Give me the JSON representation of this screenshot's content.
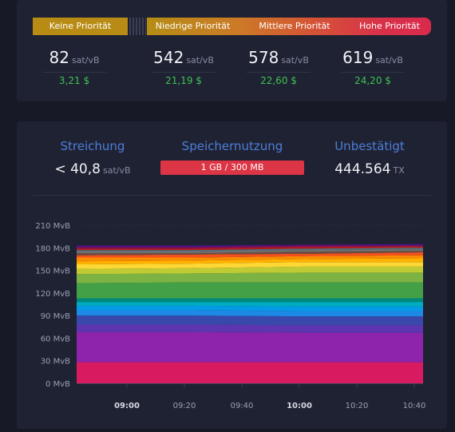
{
  "fees": {
    "priorities": [
      {
        "key": "none",
        "label": "Keine Priorität",
        "value": "82",
        "unit": "sat/vB",
        "usd": "3,21 $"
      },
      {
        "key": "low",
        "label": "Niedrige Priorität",
        "value": "542",
        "unit": "sat/vB",
        "usd": "21,19 $"
      },
      {
        "key": "mid",
        "label": "Mittlere Priorität",
        "value": "578",
        "unit": "sat/vB",
        "usd": "22,60 $"
      },
      {
        "key": "high",
        "label": "Hohe Priorität",
        "value": "619",
        "unit": "sat/vB",
        "usd": "24,20 $"
      }
    ]
  },
  "stats": {
    "purge": {
      "label": "Streichung",
      "value": "< 40,8",
      "unit": "sat/vB"
    },
    "memory": {
      "label": "Speichernutzung",
      "value": "1 GB / 300 MB",
      "fill_fraction": 1.0
    },
    "unconfirmed": {
      "label": "Unbestätigt",
      "value": "444.564",
      "unit": "TX"
    }
  },
  "colors": {
    "accent_blue": "#4d7edb",
    "usd_green": "#3fc355",
    "memory_red": "#dc3545",
    "no_priority_gold": "#b88c14"
  },
  "chart_data": {
    "type": "area",
    "stacked": true,
    "y_unit": "MvB",
    "ylim": [
      0,
      210
    ],
    "y_ticks": [
      "0 MvB",
      "30 MvB",
      "60 MvB",
      "90 MvB",
      "120 MvB",
      "150 MvB",
      "180 MvB",
      "210 MvB"
    ],
    "x": [
      "08:50",
      "10:42"
    ],
    "x_ticks": [
      {
        "label": "09:00",
        "bold": true
      },
      {
        "label": "09:20",
        "bold": false
      },
      {
        "label": "09:40",
        "bold": false
      },
      {
        "label": "10:00",
        "bold": true
      },
      {
        "label": "10:20",
        "bold": false
      },
      {
        "label": "10:40",
        "bold": false
      }
    ],
    "grid": true,
    "bands": [
      {
        "color": "#d81b60",
        "bottom": [
          0,
          0,
          0,
          0
        ],
        "top": [
          28,
          28,
          28,
          28
        ]
      },
      {
        "color": "#8e24aa",
        "bottom": [
          28,
          28,
          28,
          28
        ],
        "top": [
          68,
          68,
          67,
          67
        ]
      },
      {
        "color": "#5e35b1",
        "bottom": [
          68,
          68,
          67,
          67
        ],
        "top": [
          78,
          78,
          77,
          77
        ]
      },
      {
        "color": "#3949ab",
        "bottom": [
          78,
          78,
          77,
          77
        ],
        "top": [
          90,
          90,
          89,
          89
        ]
      },
      {
        "color": "#1e88e5",
        "bottom": [
          90,
          90,
          89,
          89
        ],
        "top": [
          97,
          97,
          96,
          96
        ]
      },
      {
        "color": "#039be5",
        "bottom": [
          97,
          97,
          96,
          96
        ],
        "top": [
          103,
          103,
          102,
          102
        ]
      },
      {
        "color": "#00acc1",
        "bottom": [
          103,
          103,
          102,
          102
        ],
        "top": [
          108,
          108,
          108,
          108
        ]
      },
      {
        "color": "#00897b",
        "bottom": [
          108,
          108,
          108,
          108
        ],
        "top": [
          113,
          113,
          113,
          113
        ]
      },
      {
        "color": "#43a047",
        "bottom": [
          113,
          113,
          113,
          113
        ],
        "top": [
          133,
          134,
          134,
          134
        ]
      },
      {
        "color": "#7cb342",
        "bottom": [
          133,
          134,
          134,
          134
        ],
        "top": [
          145,
          146,
          147,
          147
        ]
      },
      {
        "color": "#c0ca33",
        "bottom": [
          145,
          146,
          147,
          147
        ],
        "top": [
          152,
          153,
          155,
          155
        ]
      },
      {
        "color": "#fdd835",
        "bottom": [
          152,
          153,
          155,
          155
        ],
        "top": [
          158,
          159,
          161,
          161
        ]
      },
      {
        "color": "#ffb300",
        "bottom": [
          158,
          159,
          161,
          161
        ],
        "top": [
          162,
          163,
          165,
          166
        ]
      },
      {
        "color": "#fb8c00",
        "bottom": [
          162,
          163,
          165,
          166
        ],
        "top": [
          167,
          167,
          169,
          170
        ]
      },
      {
        "color": "#f4511e",
        "bottom": [
          167,
          167,
          169,
          170
        ],
        "top": [
          170,
          171,
          172,
          174
        ]
      },
      {
        "color": "#6d4c41",
        "bottom": [
          170,
          171,
          172,
          174
        ],
        "top": [
          173,
          173,
          175,
          176
        ]
      },
      {
        "color": "#757575",
        "bottom": [
          173,
          173,
          175,
          176
        ],
        "top": [
          175,
          175,
          177,
          178
        ]
      },
      {
        "color": "#546e7a",
        "bottom": [
          175,
          175,
          177,
          178
        ],
        "top": [
          177,
          177,
          179,
          180
        ]
      },
      {
        "color": "#b71c1c",
        "bottom": [
          177,
          177,
          179,
          180
        ],
        "top": [
          179,
          179,
          181,
          182
        ]
      },
      {
        "color": "#880e4f",
        "bottom": [
          179,
          179,
          181,
          182
        ],
        "top": [
          181,
          181,
          183,
          183
        ]
      },
      {
        "color": "#4a148c",
        "bottom": [
          181,
          181,
          183,
          183
        ],
        "top": [
          183,
          183,
          184,
          185
        ]
      }
    ]
  }
}
